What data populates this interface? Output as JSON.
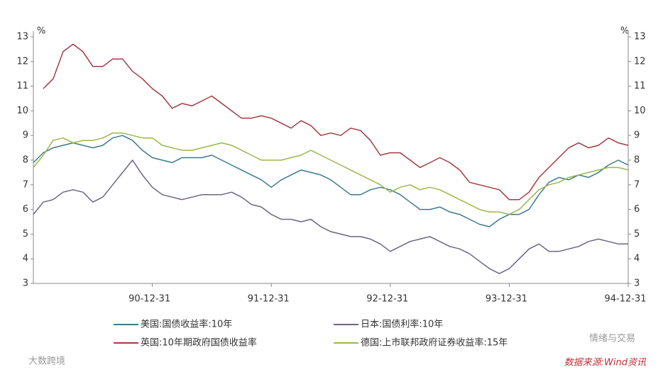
{
  "chart_data": {
    "type": "line",
    "categories": [
      null,
      null,
      null,
      null,
      null,
      null,
      null,
      null,
      null,
      null,
      null,
      null,
      "90-12-31",
      null,
      null,
      null,
      null,
      null,
      null,
      null,
      null,
      null,
      null,
      null,
      "91-12-31",
      null,
      null,
      null,
      null,
      null,
      null,
      null,
      null,
      null,
      null,
      null,
      "92-12-31",
      null,
      null,
      null,
      null,
      null,
      null,
      null,
      null,
      null,
      null,
      null,
      "93-12-31",
      null,
      null,
      null,
      null,
      null,
      null,
      null,
      null,
      null,
      null,
      null,
      "94-12-31"
    ],
    "series": [
      {
        "name": "美国:国债收益率:10年",
        "color": "#3d7a8c",
        "values": [
          7.9,
          8.3,
          8.5,
          8.6,
          8.7,
          8.6,
          8.5,
          8.6,
          8.9,
          9.0,
          8.8,
          8.4,
          8.1,
          8.0,
          7.9,
          8.1,
          8.1,
          8.1,
          8.2,
          8.0,
          7.8,
          7.6,
          7.4,
          7.2,
          6.9,
          7.2,
          7.4,
          7.6,
          7.5,
          7.4,
          7.2,
          6.9,
          6.6,
          6.6,
          6.8,
          6.9,
          6.8,
          6.6,
          6.3,
          6.0,
          6.0,
          6.1,
          5.9,
          5.8,
          5.6,
          5.4,
          5.3,
          5.6,
          5.8,
          5.8,
          6.0,
          6.6,
          7.1,
          7.3,
          7.2,
          7.4,
          7.3,
          7.5,
          7.8,
          8.0,
          7.8
        ]
      },
      {
        "name": "日本:国债利率:10年",
        "color": "#6e6483",
        "values": [
          5.8,
          6.3,
          6.4,
          6.7,
          6.8,
          6.7,
          6.3,
          6.5,
          7.0,
          7.5,
          8.0,
          7.4,
          6.9,
          6.6,
          6.5,
          6.4,
          6.5,
          6.6,
          6.6,
          6.6,
          6.7,
          6.5,
          6.2,
          6.1,
          5.8,
          5.6,
          5.6,
          5.5,
          5.6,
          5.3,
          5.1,
          5.0,
          4.9,
          4.9,
          4.8,
          4.6,
          4.3,
          4.5,
          4.7,
          4.8,
          4.9,
          4.7,
          4.5,
          4.4,
          4.2,
          3.9,
          3.6,
          3.4,
          3.6,
          4.0,
          4.4,
          4.6,
          4.3,
          4.3,
          4.4,
          4.5,
          4.7,
          4.8,
          4.7,
          4.6,
          4.6
        ]
      },
      {
        "name": "英国:10年期政府国债收益率",
        "color": "#a33c42",
        "values": [
          null,
          10.9,
          11.3,
          12.4,
          12.7,
          12.4,
          11.8,
          11.8,
          12.1,
          12.1,
          11.6,
          11.3,
          10.9,
          10.6,
          10.1,
          10.3,
          10.2,
          10.4,
          10.6,
          10.3,
          10.0,
          9.7,
          9.7,
          9.8,
          9.7,
          9.5,
          9.3,
          9.6,
          9.4,
          9.0,
          9.1,
          9.0,
          9.3,
          9.2,
          8.8,
          8.2,
          8.3,
          8.3,
          8.0,
          7.7,
          7.9,
          8.1,
          7.9,
          7.6,
          7.1,
          7.0,
          6.9,
          6.8,
          6.4,
          6.4,
          6.7,
          7.3,
          7.7,
          8.1,
          8.5,
          8.7,
          8.5,
          8.6,
          8.9,
          8.7,
          8.6
        ]
      },
      {
        "name": "德国:上市联邦政府证券收益率:15年",
        "color": "#99b84a",
        "values": [
          7.7,
          8.2,
          8.8,
          8.9,
          8.7,
          8.8,
          8.8,
          8.9,
          9.1,
          9.1,
          9.0,
          8.9,
          8.9,
          8.6,
          8.5,
          8.4,
          8.4,
          8.5,
          8.6,
          8.7,
          8.6,
          8.4,
          8.2,
          8.0,
          8.0,
          8.0,
          8.1,
          8.2,
          8.4,
          8.2,
          8.0,
          7.8,
          7.6,
          7.4,
          7.2,
          7.0,
          6.7,
          6.9,
          7.0,
          6.8,
          6.9,
          6.8,
          6.6,
          6.4,
          6.2,
          6.0,
          5.9,
          5.9,
          5.8,
          6.0,
          6.4,
          6.8,
          7.0,
          7.1,
          7.3,
          7.4,
          7.5,
          7.6,
          7.7,
          7.7,
          7.6
        ]
      }
    ],
    "y_unit": "%",
    "y2_unit": "%",
    "ylim": [
      3,
      13
    ],
    "yticks": [
      3,
      4,
      5,
      6,
      7,
      8,
      9,
      10,
      11,
      12,
      13
    ],
    "y2lim": [
      3,
      13
    ],
    "y2ticks": [
      3,
      4,
      5,
      6,
      7,
      8,
      9,
      10,
      11,
      12,
      13
    ],
    "source": "数据来源:Wind资讯",
    "watermark": "情绪与交易",
    "watermark2": "大数跨境"
  }
}
